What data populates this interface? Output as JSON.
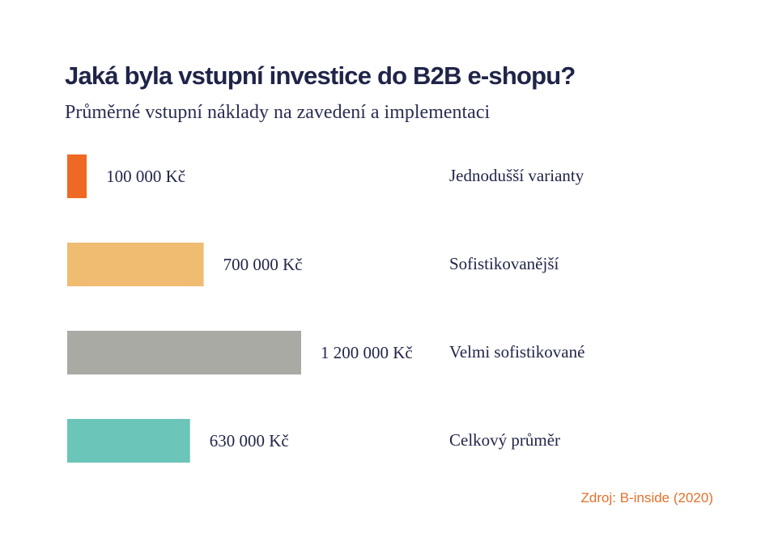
{
  "title": "Jaká byla vstupní investice do B2B e-shopu?",
  "subtitle": "Průměrné vstupní náklady na zavedení a implementaci",
  "source": "Zdroj: B-inside (2020)",
  "chart_data": {
    "type": "bar",
    "orientation": "horizontal",
    "categories": [
      "Jednodušší varianty",
      "Sofistikovanější",
      "Velmi sofistikované",
      "Celkový průměr"
    ],
    "values": [
      100000,
      700000,
      1200000,
      630000
    ],
    "value_labels": [
      "100 000 Kč",
      "700 000 Kč",
      "1 200 000 Kč",
      "630 000 Kč"
    ],
    "colors": [
      "#ee6a24",
      "#efbc72",
      "#a9aaa4",
      "#6bc5b8"
    ],
    "grid": false,
    "legend": "none"
  }
}
